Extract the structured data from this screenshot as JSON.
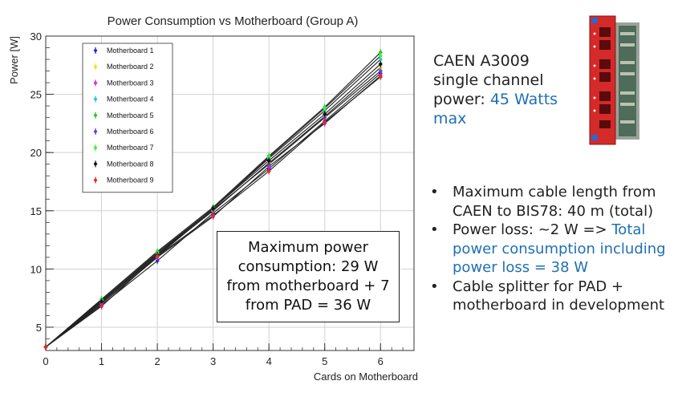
{
  "chart_data": {
    "type": "line",
    "title": "Power Consumption vs Motherboard (Group A)",
    "xlabel": "Cards on Motherboard",
    "ylabel": "Power [W]",
    "xlim": [
      0,
      6.6
    ],
    "ylim": [
      3,
      30
    ],
    "xticks": [
      "0",
      "1",
      "2",
      "3",
      "4",
      "5",
      "6"
    ],
    "yticks": [
      "5",
      "10",
      "15",
      "20",
      "25",
      "30"
    ],
    "grid": true,
    "legend_position": "top-left",
    "x": [
      0,
      1,
      2,
      3,
      4,
      5,
      6
    ],
    "series": [
      {
        "name": "Motherboard 1",
        "color": "#1f2bd6",
        "values": [
          3.3,
          6.9,
          10.7,
          14.8,
          18.6,
          22.7,
          26.8
        ]
      },
      {
        "name": "Motherboard 2",
        "color": "#f2e21a",
        "values": [
          3.3,
          7.2,
          11.2,
          15.0,
          19.1,
          23.1,
          27.3
        ]
      },
      {
        "name": "Motherboard 3",
        "color": "#d62bd6",
        "values": [
          3.3,
          7.0,
          11.0,
          14.5,
          18.8,
          22.5,
          26.6
        ]
      },
      {
        "name": "Motherboard 4",
        "color": "#28c8d8",
        "values": [
          3.3,
          7.3,
          11.3,
          15.2,
          19.5,
          23.6,
          28.0
        ]
      },
      {
        "name": "Motherboard 5",
        "color": "#2bc42b",
        "values": [
          3.3,
          7.4,
          11.5,
          15.3,
          19.7,
          23.9,
          28.6
        ]
      },
      {
        "name": "Motherboard 6",
        "color": "#6a3fcf",
        "values": [
          3.3,
          7.1,
          11.1,
          15.1,
          19.0,
          23.0,
          27.0
        ]
      },
      {
        "name": "Motherboard 7",
        "color": "#3ef03e",
        "values": [
          3.3,
          7.3,
          11.4,
          15.2,
          19.6,
          23.8,
          28.3
        ]
      },
      {
        "name": "Motherboard 8",
        "color": "#111111",
        "values": [
          3.3,
          7.2,
          11.2,
          15.2,
          19.3,
          23.3,
          27.6
        ]
      },
      {
        "name": "Motherboard 9",
        "color": "#e02a2a",
        "values": [
          3.3,
          6.8,
          11.1,
          14.6,
          18.4,
          22.6,
          26.5
        ]
      }
    ]
  },
  "annotation": {
    "text": "Maximum power consumption: 29 W from motherboard + 7 from PAD = 36 W"
  },
  "caen": {
    "text_plain": "CAEN A3009 single channel power: ",
    "text_highlight": "45 Watts max"
  },
  "bullets": {
    "item1": "Maximum cable length from CAEN to BIS78: 40 m (total)",
    "item2_plain": "Power loss: ~2 W => ",
    "item2_highlight": "Total power consumption including power loss = 38 W",
    "item3": "Cable splitter for PAD + motherboard in development"
  },
  "colors": {
    "highlight": "#1f6fb5",
    "module_red": "#d42a2a"
  },
  "icons": {
    "module_image": "caen-a3009-power-supply-module"
  }
}
